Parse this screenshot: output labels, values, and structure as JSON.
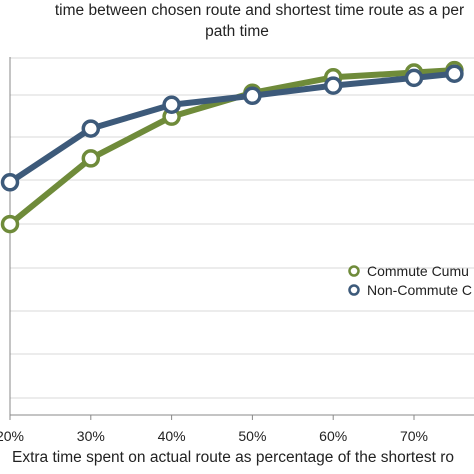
{
  "chart_data": {
    "type": "line",
    "title": "time between chosen route and shortest time route as a per path time",
    "title_lines": [
      "time between chosen route and shortest time route as a per",
      "path time"
    ],
    "xlabel": "Extra time spent on actual route as percentage of the shortest ro",
    "ylabel": "",
    "x": [
      "20%",
      "30%",
      "40%",
      "50%",
      "60%",
      "70%"
    ],
    "x_values": [
      20,
      30,
      40,
      50,
      60,
      70,
      75
    ],
    "xlim": [
      19,
      76
    ],
    "ylim": [
      0,
      1
    ],
    "grid": true,
    "legend_position": "right",
    "series": [
      {
        "name": "Commute Cumu",
        "color": "#6f8b3a",
        "values": [
          0.72,
          0.83,
          0.9,
          0.94,
          0.966,
          0.974,
          0.978
        ]
      },
      {
        "name": "Non-Commute C",
        "color": "#3d5a7a",
        "values": [
          0.79,
          0.88,
          0.92,
          0.935,
          0.952,
          0.965,
          0.972
        ]
      }
    ]
  }
}
